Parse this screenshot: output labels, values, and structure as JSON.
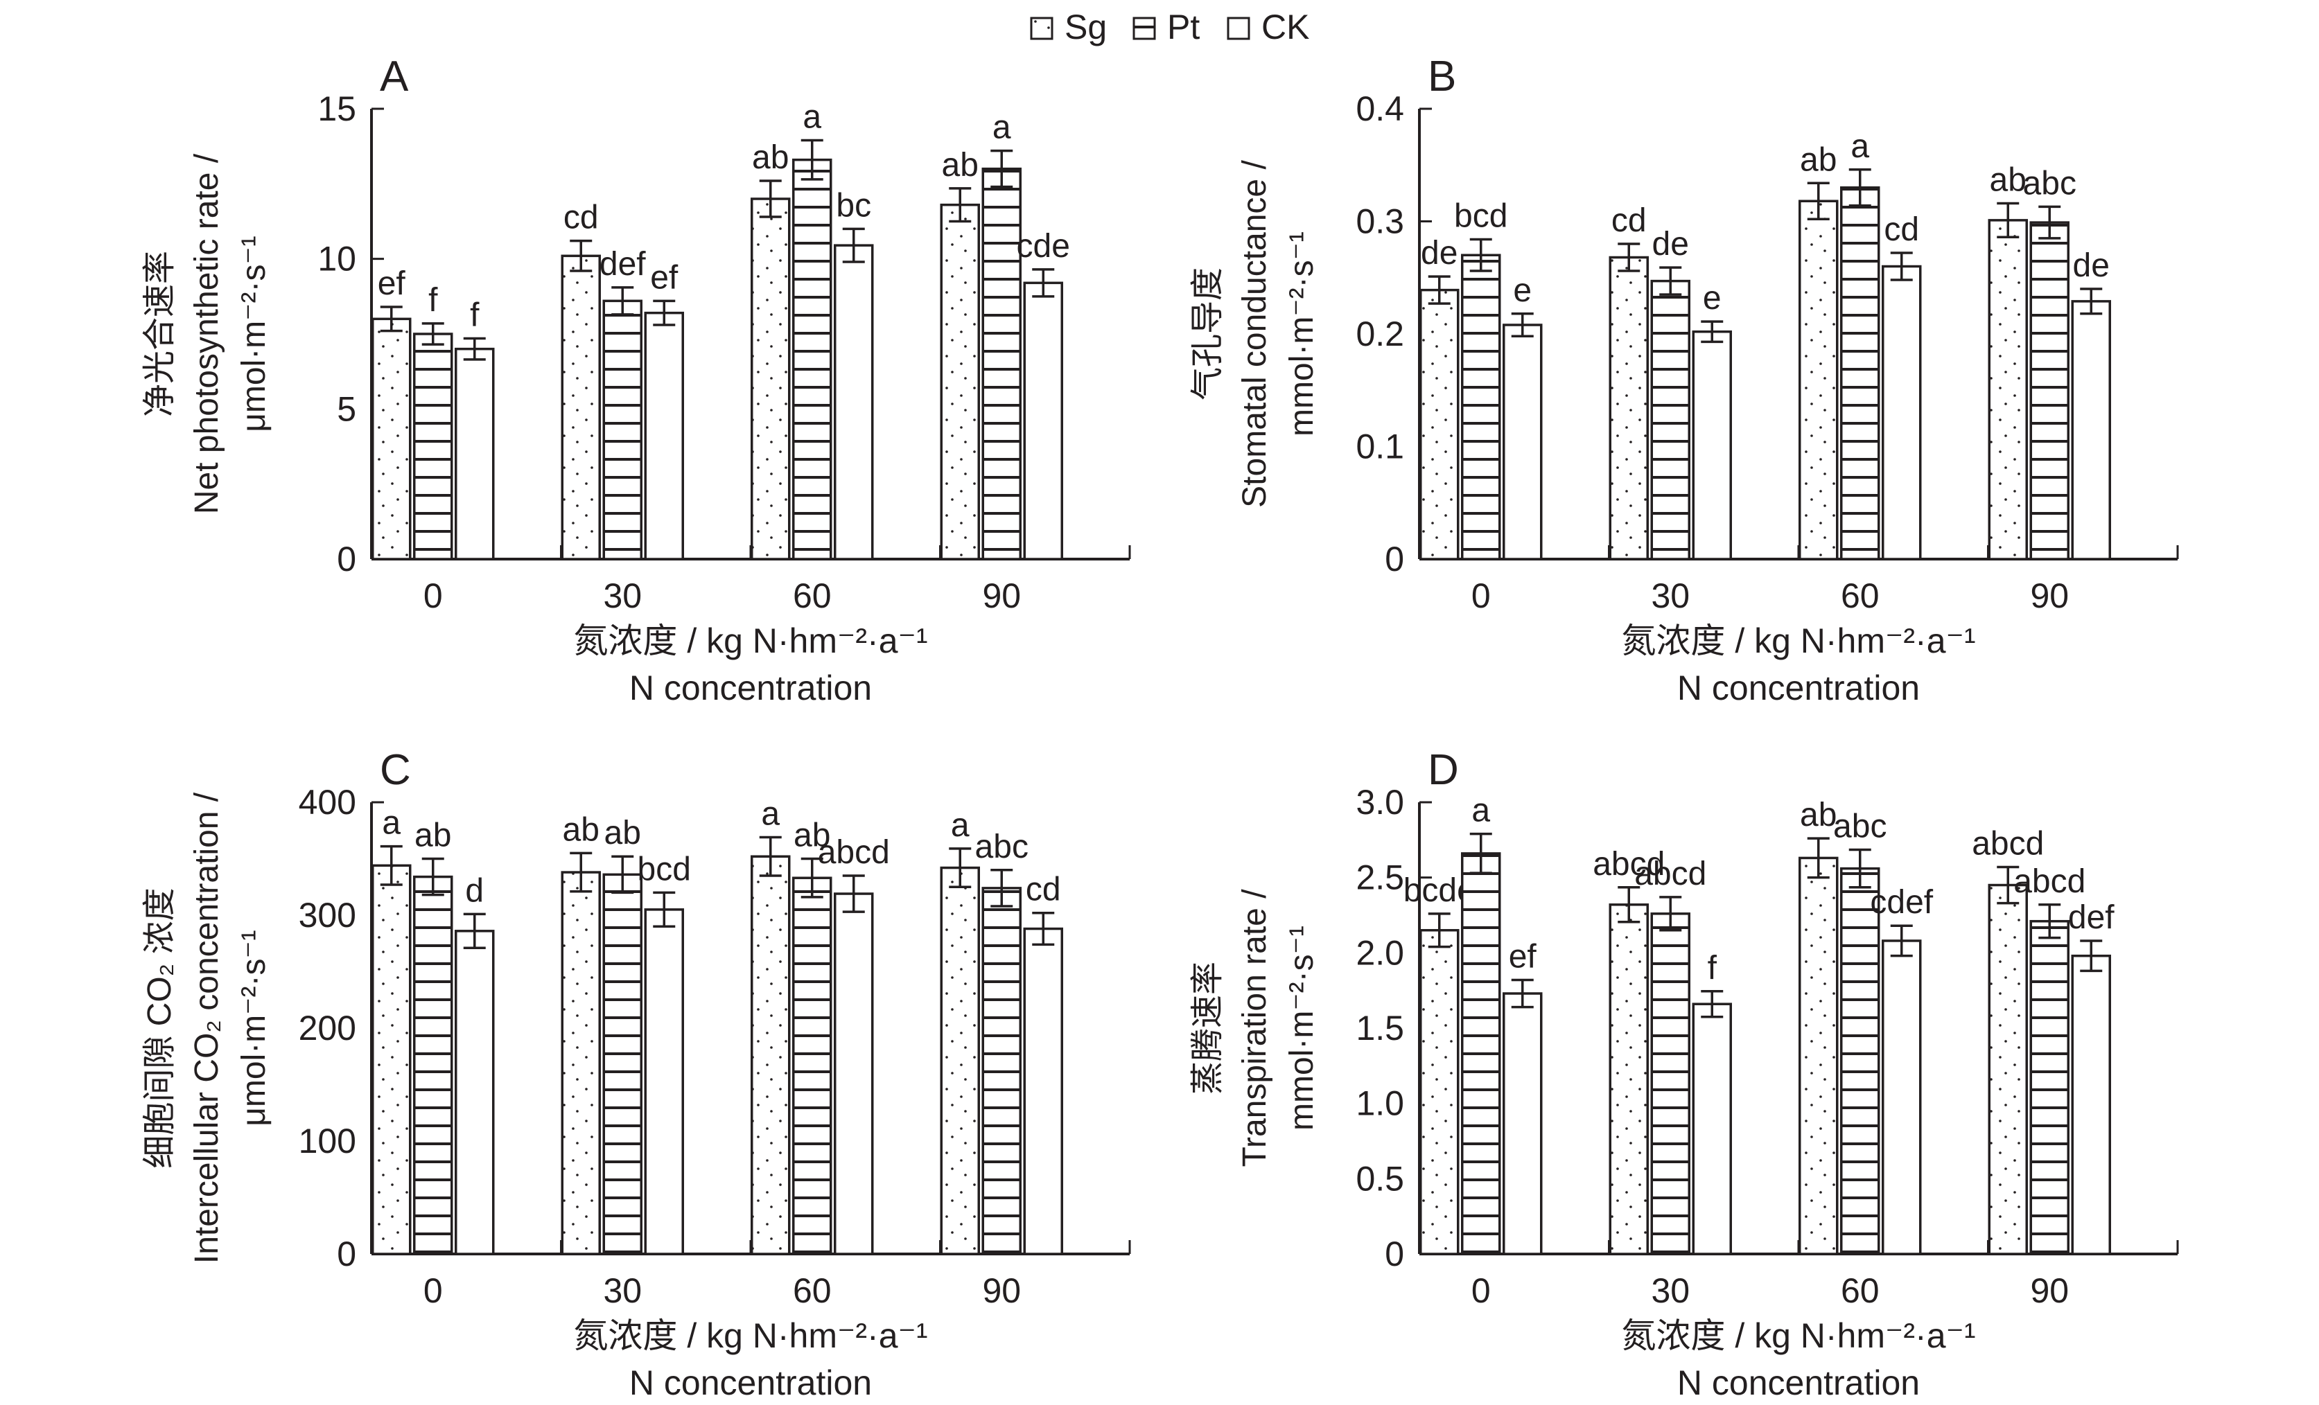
{
  "legend": [
    {
      "key": "Sg",
      "label": "Sg",
      "pattern": "dots"
    },
    {
      "key": "Pt",
      "label": "Pt",
      "pattern": "hlines"
    },
    {
      "key": "CK",
      "label": "CK",
      "pattern": "none"
    }
  ],
  "colors": {
    "ink": "#231f20",
    "fill": "#ffffff"
  },
  "chart_data": [
    {
      "panel": "A",
      "type": "bar",
      "ylabel_cn": "净光合速率",
      "ylabel_en": "Net photosynthetic rate /",
      "ylabel_unit": "μmol·m⁻²·s⁻¹",
      "xlabel_cn": "氮浓度 / kg N·hm⁻²·a⁻¹",
      "xlabel_en": "N concentration",
      "categories": [
        "0",
        "30",
        "60",
        "90"
      ],
      "ylim": [
        0,
        15
      ],
      "yticks": [
        0,
        5,
        10,
        15
      ],
      "ytick_labels": [
        "0",
        "5",
        "10",
        "15"
      ],
      "series": [
        {
          "name": "Sg",
          "values": [
            8.0,
            10.1,
            12.0,
            11.8
          ],
          "errors": [
            0.4,
            0.5,
            0.6,
            0.55
          ],
          "letters": [
            "ef",
            "cd",
            "ab",
            "ab"
          ]
        },
        {
          "name": "Pt",
          "values": [
            7.5,
            8.6,
            13.3,
            13.0
          ],
          "errors": [
            0.35,
            0.45,
            0.65,
            0.6
          ],
          "letters": [
            "f",
            "def",
            "a",
            "a"
          ]
        },
        {
          "name": "CK",
          "values": [
            7.0,
            8.2,
            10.45,
            9.2
          ],
          "errors": [
            0.35,
            0.4,
            0.55,
            0.45
          ],
          "letters": [
            "f",
            "ef",
            "bc",
            "cde"
          ]
        }
      ]
    },
    {
      "panel": "B",
      "type": "bar",
      "ylabel_cn": "气孔导度",
      "ylabel_en": "Stomatal conductance /",
      "ylabel_unit": "mmol·m⁻²·s⁻¹",
      "xlabel_cn": "氮浓度 / kg N·hm⁻²·a⁻¹",
      "xlabel_en": "N concentration",
      "categories": [
        "0",
        "30",
        "60",
        "90"
      ],
      "ylim": [
        0,
        0.4
      ],
      "yticks": [
        0,
        0.1,
        0.2,
        0.3,
        0.4
      ],
      "ytick_labels": [
        "0",
        "0.1",
        "0.2",
        "0.3",
        "0.4"
      ],
      "series": [
        {
          "name": "Sg",
          "values": [
            0.239,
            0.268,
            0.318,
            0.301
          ],
          "errors": [
            0.012,
            0.012,
            0.016,
            0.015
          ],
          "letters": [
            "de",
            "cd",
            "ab",
            "ab"
          ]
        },
        {
          "name": "Pt",
          "values": [
            0.27,
            0.247,
            0.33,
            0.299
          ],
          "errors": [
            0.014,
            0.012,
            0.016,
            0.014
          ],
          "letters": [
            "bcd",
            "de",
            "a",
            "abc"
          ]
        },
        {
          "name": "CK",
          "values": [
            0.208,
            0.202,
            0.26,
            0.229
          ],
          "errors": [
            0.01,
            0.009,
            0.012,
            0.011
          ],
          "letters": [
            "e",
            "e",
            "cd",
            "de"
          ]
        }
      ]
    },
    {
      "panel": "C",
      "type": "bar",
      "ylabel_cn": "细胞间隙 CO₂ 浓度",
      "ylabel_en": "Intercellular CO₂ concentration /",
      "ylabel_unit": "μmol·m⁻²·s⁻¹",
      "xlabel_cn": "氮浓度 / kg N·hm⁻²·a⁻¹",
      "xlabel_en": "N concentration",
      "categories": [
        "0",
        "30",
        "60",
        "90"
      ],
      "ylim": [
        0,
        400
      ],
      "yticks": [
        0,
        100,
        200,
        300,
        400
      ],
      "ytick_labels": [
        "0",
        "100",
        "200",
        "300",
        "400"
      ],
      "series": [
        {
          "name": "Sg",
          "values": [
            344,
            338,
            352,
            342
          ],
          "errors": [
            17,
            17,
            17,
            17
          ],
          "letters": [
            "a",
            "ab",
            "a",
            "a"
          ]
        },
        {
          "name": "Pt",
          "values": [
            334,
            336,
            333,
            324
          ],
          "errors": [
            16,
            16,
            17,
            16
          ],
          "letters": [
            "ab",
            "ab",
            "ab",
            "abc"
          ]
        },
        {
          "name": "CK",
          "values": [
            286,
            305,
            319,
            288
          ],
          "errors": [
            15,
            15,
            16,
            14
          ],
          "letters": [
            "d",
            "bcd",
            "abcd",
            "cd"
          ]
        }
      ]
    },
    {
      "panel": "D",
      "type": "bar",
      "ylabel_cn": "蒸腾速率",
      "ylabel_en": "Transpiration rate /",
      "ylabel_unit": "mmol·m⁻²·s⁻¹",
      "xlabel_cn": "氮浓度 / kg N·hm⁻²·a⁻¹",
      "xlabel_en": "N concentration",
      "categories": [
        "0",
        "30",
        "60",
        "90"
      ],
      "ylim": [
        0,
        3.0
      ],
      "yticks": [
        0,
        0.5,
        1.0,
        1.5,
        2.0,
        2.5,
        3.0
      ],
      "ytick_labels": [
        "0",
        "0.5",
        "1.0",
        "1.5",
        "2.0",
        "2.5",
        "3.0"
      ],
      "series": [
        {
          "name": "Sg",
          "values": [
            2.15,
            2.32,
            2.63,
            2.45
          ],
          "errors": [
            0.11,
            0.115,
            0.13,
            0.12
          ],
          "letters": [
            "bcde",
            "abcd",
            "ab",
            "abcd"
          ]
        },
        {
          "name": "Pt",
          "values": [
            2.66,
            2.26,
            2.56,
            2.21
          ],
          "errors": [
            0.13,
            0.11,
            0.125,
            0.11
          ],
          "letters": [
            "a",
            "abcd",
            "abc",
            "abcd"
          ]
        },
        {
          "name": "CK",
          "values": [
            1.73,
            1.66,
            2.08,
            1.98
          ],
          "errors": [
            0.09,
            0.085,
            0.1,
            0.1
          ],
          "letters": [
            "ef",
            "f",
            "cdef",
            "def"
          ]
        }
      ]
    }
  ]
}
